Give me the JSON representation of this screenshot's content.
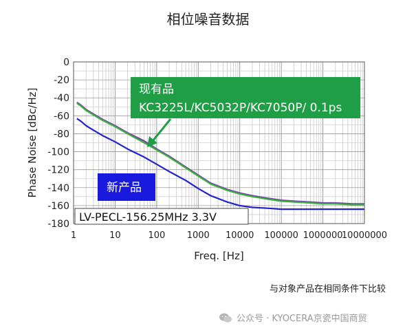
{
  "chart_data": {
    "type": "line",
    "title": "相位噪音数据",
    "xlabel": "Freq. [Hz]",
    "ylabel": "Phase Noise [dBc/Hz]",
    "x_scale": "log",
    "xlim": [
      1,
      10000000
    ],
    "ylim": [
      -180,
      0
    ],
    "x_ticks": [
      "1",
      "10",
      "100",
      "1000",
      "10000",
      "100000",
      "1000000",
      "10000000"
    ],
    "y_ticks": [
      "0",
      "-20",
      "-40",
      "-60",
      "-80",
      "-100",
      "-120",
      "-140",
      "-160",
      "-180"
    ],
    "grid": true,
    "series": [
      {
        "color": "#7a3fb5",
        "x": [
          1.2,
          1.5,
          2,
          3,
          5,
          10,
          20,
          50,
          100,
          200,
          500,
          1000,
          2000,
          5000,
          10000,
          20000,
          50000,
          100000,
          200000,
          500000,
          1000000,
          2000000,
          5000000,
          10000000
        ],
        "y": [
          -45,
          -48,
          -53,
          -58,
          -64,
          -71,
          -79,
          -88,
          -97,
          -105,
          -117,
          -126,
          -135,
          -142,
          -146,
          -149,
          -152,
          -154,
          -155,
          -156,
          -157,
          -157,
          -158,
          -158
        ]
      },
      {
        "color": "#38b038",
        "x": [
          1.2,
          1.5,
          2,
          3,
          5,
          10,
          20,
          50,
          100,
          200,
          500,
          1000,
          2000,
          5000,
          10000,
          20000,
          50000,
          100000,
          200000,
          500000,
          1000000,
          2000000,
          5000000,
          10000000
        ],
        "y": [
          -46,
          -49,
          -54,
          -59,
          -65,
          -72,
          -80,
          -90,
          -98,
          -106,
          -118,
          -127,
          -136,
          -143,
          -147,
          -150,
          -153,
          -155,
          -156,
          -157,
          -158,
          -158,
          -159,
          -159
        ]
      },
      {
        "color": "#2222cc",
        "x": [
          1.2,
          1.5,
          2,
          3,
          5,
          10,
          20,
          50,
          100,
          200,
          500,
          1000,
          2000,
          5000,
          10000,
          20000,
          50000,
          100000,
          200000,
          500000,
          1000000,
          2000000,
          5000000,
          10000000
        ],
        "y": [
          -63,
          -66,
          -71,
          -76,
          -82,
          -89,
          -97,
          -106,
          -114,
          -122,
          -132,
          -141,
          -149,
          -156,
          -160,
          -162,
          -163,
          -164,
          -164,
          -164,
          -164,
          -164,
          -164,
          -164
        ]
      }
    ],
    "annotations": {
      "existing_label": "现有品",
      "existing_models": "KC3225L/KC5032P/KC7050P/ 0.1ps",
      "existing_color": "#1f9e46",
      "new_label": "新产品",
      "new_color": "#1a1adf",
      "condition_label": "LV-PECL-156.25MHz 3.3V"
    }
  },
  "caption": "与对象产品在相同条件下比较",
  "watermark": "公众号 · KYOCERA京瓷中国商贸",
  "watermark_icon": "wechat-icon"
}
